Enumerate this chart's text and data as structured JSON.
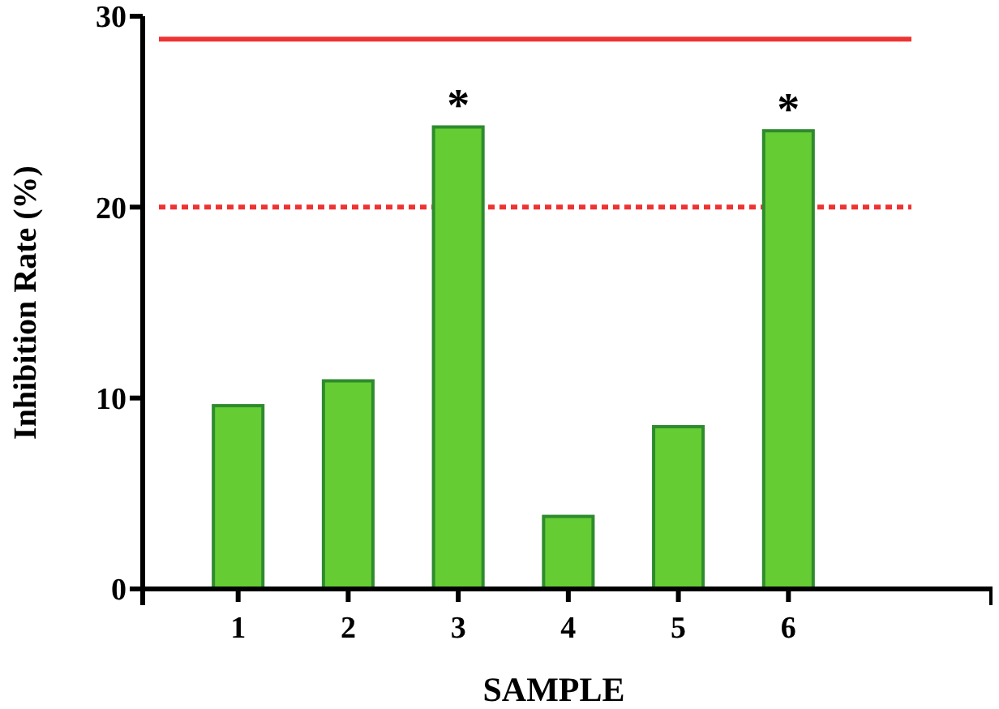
{
  "chart_data": {
    "type": "bar",
    "xlabel": "SAMPLE",
    "ylabel": "Inhibition Rate (%)",
    "categories": [
      "1",
      "2",
      "3",
      "4",
      "5",
      "6"
    ],
    "values": [
      9.6,
      10.9,
      24.2,
      3.8,
      8.5,
      24.0
    ],
    "color": "#66cc33",
    "ylim": [
      0,
      30
    ],
    "yticks": [
      0,
      10,
      20,
      30
    ],
    "ref_lines": [
      {
        "axis": "y",
        "value": 28.8,
        "color": "#ee3333",
        "line_style": "solid"
      },
      {
        "axis": "y",
        "value": 20,
        "color": "#ee3333",
        "line_style": "dotted"
      }
    ],
    "annotations": [
      {
        "text": "*",
        "x": "3",
        "y": 24.2
      },
      {
        "text": "*",
        "x": "6",
        "y": 24.0
      }
    ]
  }
}
